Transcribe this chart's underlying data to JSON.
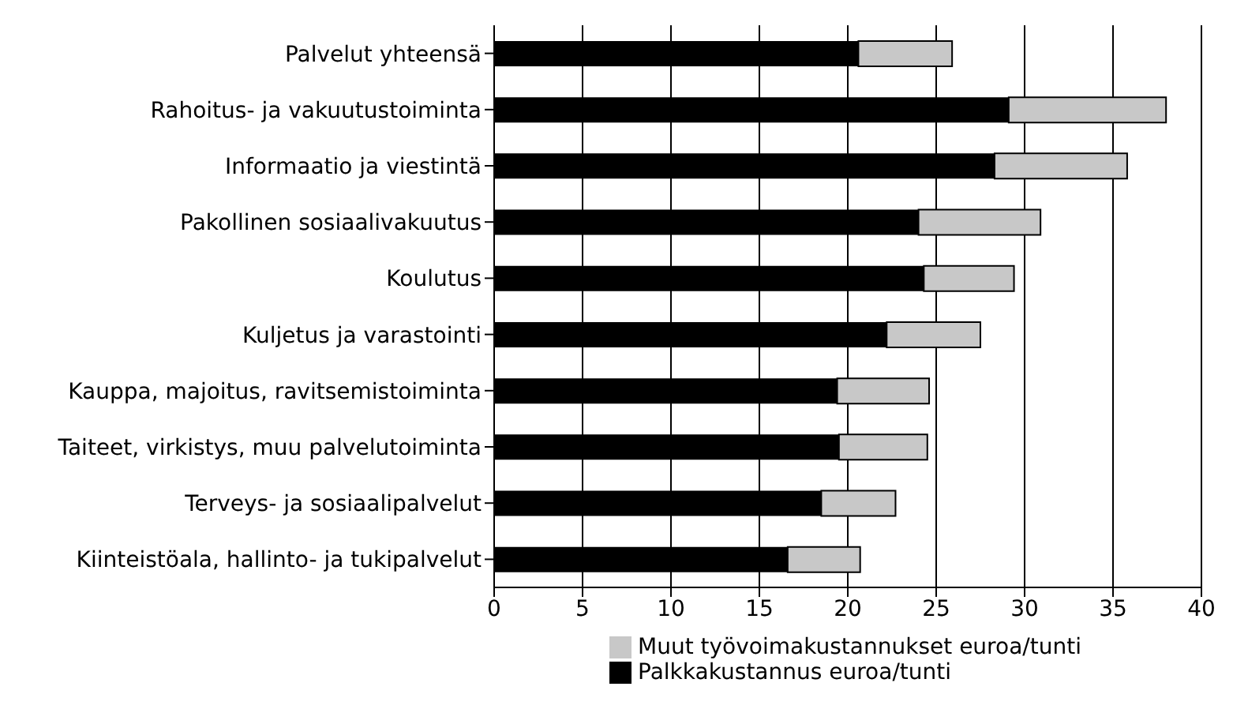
{
  "chart_data": {
    "type": "bar",
    "orientation": "horizontal",
    "stacked": true,
    "categories": [
      "Palvelut yhteensä",
      "Rahoitus- ja vakuutustoiminta",
      "Informaatio ja viestintä",
      "Pakollinen sosiaalivakuutus",
      "Koulutus",
      "Kuljetus ja varastointi",
      "Kauppa, majoitus, ravitsemistoiminta",
      "Taiteet, virkistys, muu palvelutoiminta",
      "Terveys- ja sosiaalipalvelut",
      "Kiinteistöala, hallinto- ja tukipalvelut"
    ],
    "series": [
      {
        "name": "Palkkakustannus euroa/tunti",
        "color": "#000000",
        "values": [
          20.6,
          29.1,
          28.3,
          24.0,
          24.3,
          22.2,
          19.4,
          19.5,
          18.5,
          16.6
        ]
      },
      {
        "name": "Muut työvoimakustannukset euroa/tunti",
        "color": "#c8c8c8",
        "values": [
          5.3,
          8.9,
          7.5,
          6.9,
          5.1,
          5.3,
          5.2,
          5.0,
          4.2,
          4.1
        ]
      }
    ],
    "xlim": [
      0,
      40
    ],
    "xticks": [
      0,
      5,
      10,
      15,
      20,
      25,
      30,
      35,
      40
    ],
    "grid": "x",
    "legend": "bottom"
  }
}
